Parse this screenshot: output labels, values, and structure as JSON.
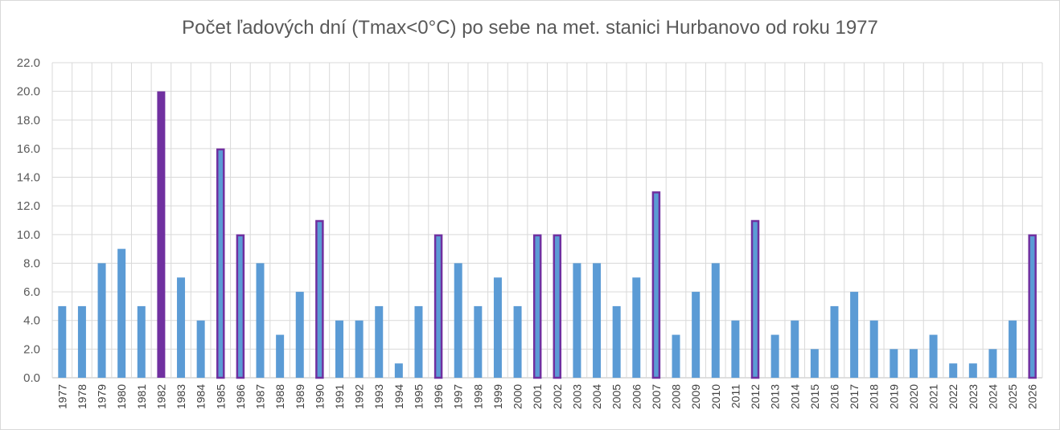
{
  "chart_data": {
    "type": "bar",
    "title": "Počet ľadových dní (Tmax<0°C) po sebe na met. stanici Hurbanovo od roku 1977",
    "xlabel": "",
    "ylabel": "",
    "ylim": [
      0,
      22
    ],
    "yticks": [
      "0.0",
      "2.0",
      "4.0",
      "6.0",
      "8.0",
      "10.0",
      "12.0",
      "14.0",
      "16.0",
      "18.0",
      "20.0",
      "22.0"
    ],
    "grid": true,
    "categories": [
      "1977",
      "1978",
      "1979",
      "1980",
      "1981",
      "1982",
      "1983",
      "1984",
      "1985",
      "1986",
      "1987",
      "1988",
      "1989",
      "1990",
      "1991",
      "1992",
      "1993",
      "1994",
      "1995",
      "1996",
      "1997",
      "1998",
      "1999",
      "2000",
      "2001",
      "2002",
      "2003",
      "2004",
      "2005",
      "2006",
      "2007",
      "2008",
      "2009",
      "2010",
      "2011",
      "2012",
      "2013",
      "2014",
      "2015",
      "2016",
      "2017",
      "2018",
      "2019",
      "2020",
      "2021",
      "2022",
      "2023",
      "2024",
      "2025",
      "2026"
    ],
    "values": [
      5,
      5,
      8,
      9,
      5,
      20,
      7,
      4,
      16,
      10,
      8,
      3,
      6,
      11,
      4,
      4,
      5,
      1,
      5,
      10,
      8,
      5,
      7,
      5,
      10,
      10,
      8,
      8,
      5,
      7,
      13,
      3,
      6,
      8,
      4,
      11,
      3,
      4,
      2,
      5,
      6,
      4,
      2,
      2,
      3,
      1,
      1,
      2,
      4,
      10
    ],
    "highlight_categories": [
      "1985",
      "1986",
      "1990",
      "1996",
      "2001",
      "2002",
      "2007",
      "2012",
      "2026"
    ],
    "max_category": "1982",
    "colors": {
      "bar": "#5b9bd5",
      "highlight_outline": "#7030a0",
      "max_fill": "#7030a0",
      "grid": "#d9d9d9",
      "axis": "#bfbfbf"
    }
  }
}
